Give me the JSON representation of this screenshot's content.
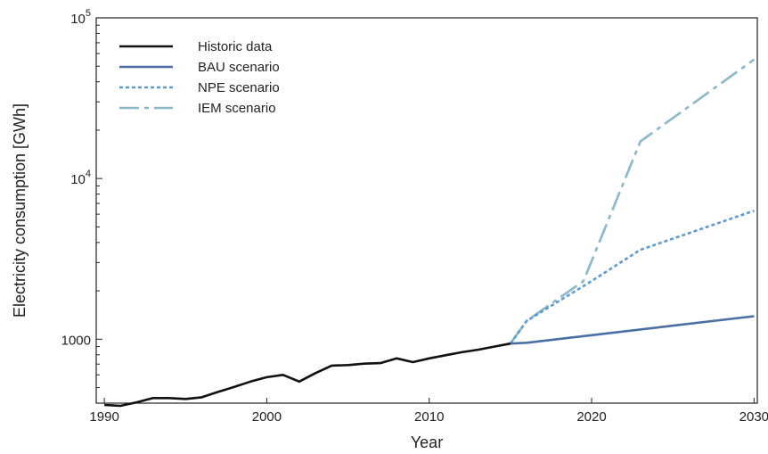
{
  "chart_data": {
    "type": "line",
    "title": "",
    "xlabel": "Year",
    "ylabel": "Electricity consumption [GWh]",
    "xlim": [
      1989.5,
      2030.2
    ],
    "ylim": [
      400,
      100000
    ],
    "yscale": "log",
    "x_ticks": [
      {
        "value": 1990,
        "label": "1990"
      },
      {
        "value": 2000,
        "label": "2000"
      },
      {
        "value": 2010,
        "label": "2010"
      },
      {
        "value": 2020,
        "label": "2020"
      },
      {
        "value": 2030,
        "label": "2030"
      }
    ],
    "y_ticks": [
      {
        "value": 1000,
        "base": "1000",
        "exp": ""
      },
      {
        "value": 10000,
        "base": "10",
        "exp": "4"
      },
      {
        "value": 100000,
        "base": "10",
        "exp": "5"
      }
    ],
    "grid": false,
    "legend_position": "top-left",
    "series": [
      {
        "name": "Historic data",
        "color": "#111111",
        "style": "solid",
        "x": [
          1990,
          1991,
          1992,
          1993,
          1994,
          1995,
          1996,
          1997,
          1998,
          1999,
          2000,
          2001,
          2002,
          2003,
          2004,
          2005,
          2006,
          2007,
          2008,
          2009,
          2010,
          2011,
          2012,
          2013,
          2014,
          2015
        ],
        "y": [
          390,
          385,
          405,
          430,
          430,
          425,
          435,
          470,
          505,
          545,
          580,
          600,
          545,
          615,
          685,
          690,
          705,
          710,
          760,
          720,
          760,
          795,
          830,
          860,
          900,
          940
        ]
      },
      {
        "name": "BAU scenario",
        "color": "#4a6fa5",
        "style": "solid",
        "x": [
          2015,
          2016,
          2020,
          2023,
          2030
        ],
        "y": [
          940,
          950,
          1060,
          1150,
          1390
        ]
      },
      {
        "name": "NPE scenario",
        "color": "#5b9bd5",
        "style": "dotted",
        "x": [
          2015,
          2016,
          2020,
          2023,
          2030
        ],
        "y": [
          940,
          1300,
          2300,
          3600,
          6300
        ]
      },
      {
        "name": "IEM scenario",
        "color": "#8ab8c8",
        "style": "dashdot",
        "x": [
          2015,
          2016,
          2019.5,
          2023,
          2030
        ],
        "y": [
          940,
          1300,
          2300,
          17000,
          55000
        ]
      }
    ]
  }
}
